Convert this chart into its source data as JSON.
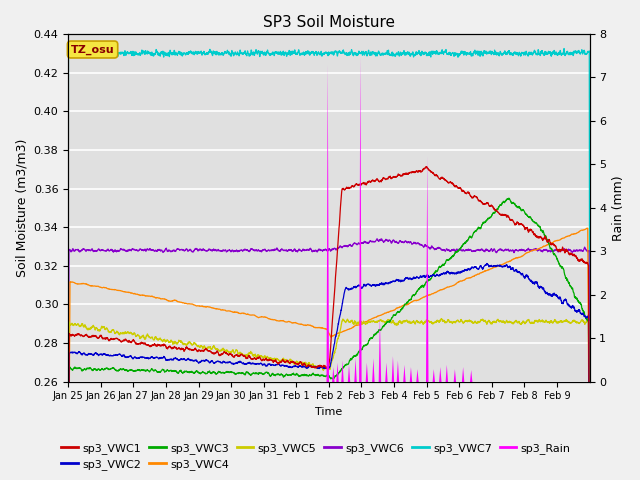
{
  "title": "SP3 Soil Moisture",
  "xlabel": "Time",
  "ylabel_left": "Soil Moisture (m3/m3)",
  "ylabel_right": "Rain (mm)",
  "ylim_left": [
    0.26,
    0.44
  ],
  "ylim_right": [
    0.0,
    8.0
  ],
  "fig_bg_color": "#f0f0f0",
  "plot_bg_color": "#e0e0e0",
  "tz_label": "TZ_osu",
  "tz_bg": "#f5e642",
  "tz_border": "#c8a000",
  "colors": {
    "sp3_VWC1": "#cc0000",
    "sp3_VWC2": "#0000cc",
    "sp3_VWC3": "#00aa00",
    "sp3_VWC4": "#ff8800",
    "sp3_VWC5": "#cccc00",
    "sp3_VWC6": "#8800cc",
    "sp3_VWC7": "#00cccc",
    "sp3_Rain": "#ff00ff"
  },
  "x_ticks": [
    "Jan 25",
    "Jan 26",
    "Jan 27",
    "Jan 28",
    "Jan 29",
    "Jan 30",
    "Jan 31",
    "Feb 1",
    "Feb 2",
    "Feb 3",
    "Feb 4",
    "Feb 5",
    "Feb 6",
    "Feb 7",
    "Feb 8",
    "Feb 9"
  ],
  "yticks_left": [
    0.26,
    0.28,
    0.3,
    0.32,
    0.34,
    0.36,
    0.38,
    0.4,
    0.42,
    0.44
  ],
  "yticks_right": [
    0.0,
    1.0,
    2.0,
    3.0,
    4.0,
    5.0,
    6.0,
    7.0,
    8.0
  ],
  "n_points": 3360,
  "seed": 42
}
